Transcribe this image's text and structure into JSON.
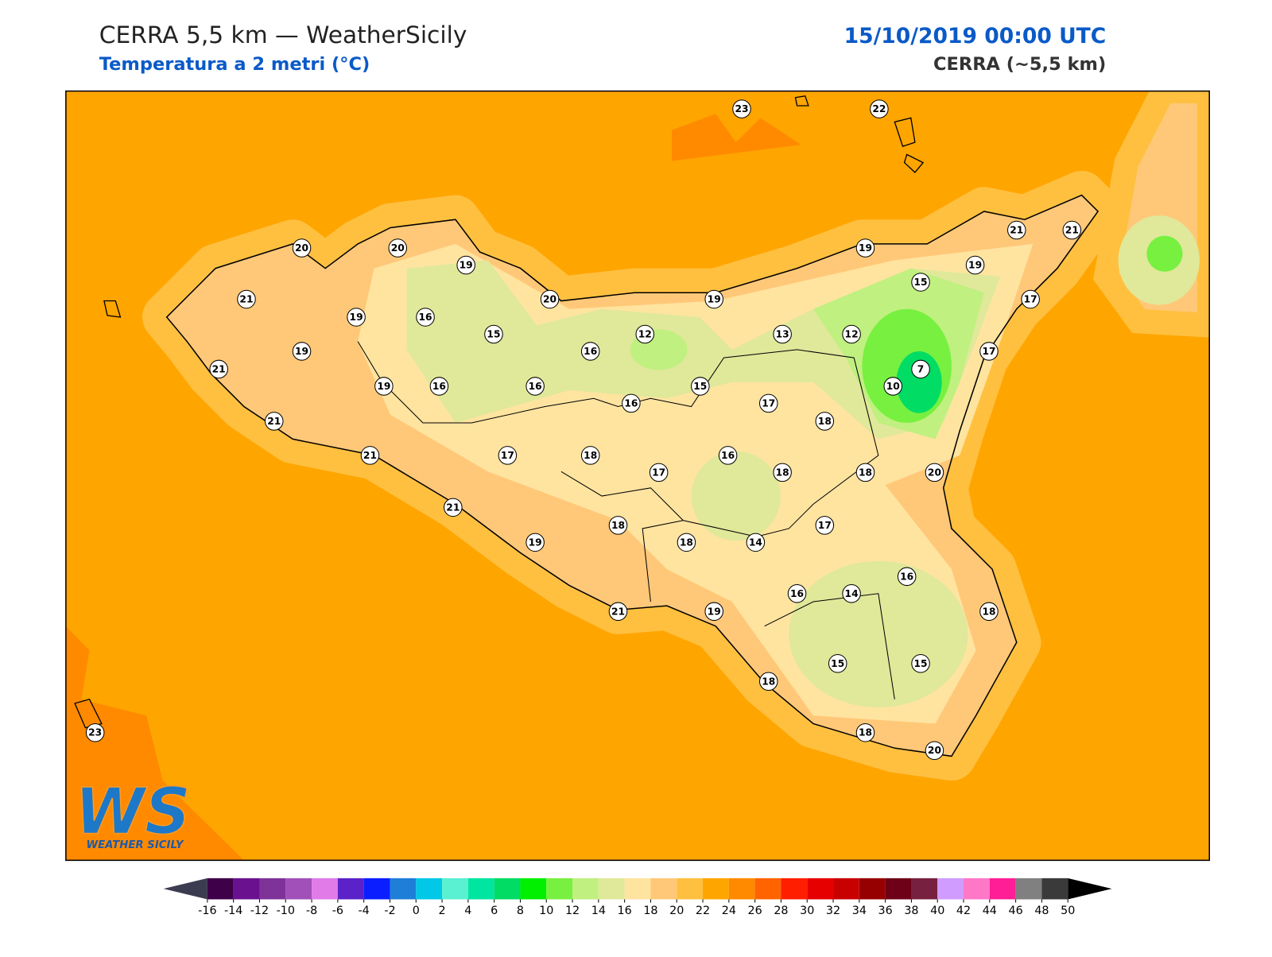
{
  "header": {
    "title": "CERRA 5,5 km — WeatherSicily",
    "subtitle": "Temperatura a 2 metri (°C)",
    "date": "15/10/2019 00:00 UTC",
    "model": "CERRA (~5,5 km)"
  },
  "stations": [
    23,
    22,
    20,
    20,
    19,
    21,
    19,
    16,
    15,
    20,
    19,
    19,
    21,
    21,
    19,
    15,
    17,
    21,
    19,
    19,
    16,
    16,
    16,
    12,
    13,
    12,
    7,
    10,
    17,
    21,
    15,
    16,
    17,
    18,
    21,
    17,
    18,
    17,
    16,
    18,
    18,
    20,
    21,
    18,
    19,
    18,
    14,
    17,
    16,
    16,
    14,
    18,
    21,
    19,
    15,
    15,
    18,
    18,
    20,
    23
  ],
  "colorbar": {
    "ticks": [
      -16,
      -14,
      -12,
      -10,
      -8,
      -6,
      -4,
      -2,
      0,
      2,
      4,
      6,
      8,
      10,
      12,
      14,
      16,
      18,
      20,
      22,
      24,
      26,
      28,
      30,
      32,
      34,
      36,
      38,
      40,
      42,
      44,
      46,
      48,
      50
    ],
    "colors": [
      "#3d0049",
      "#6a1190",
      "#7e3399",
      "#a050b8",
      "#e07be8",
      "#5a22c8",
      "#0a1eff",
      "#1e7ed8",
      "#00c8e6",
      "#5af0d2",
      "#00e6a0",
      "#00dc64",
      "#00f000",
      "#78f040",
      "#c0f080",
      "#e0e89a",
      "#ffe4a0",
      "#ffc878",
      "#ffc040",
      "#ffa500",
      "#ff8a00",
      "#ff6400",
      "#ff1e00",
      "#e60000",
      "#c80000",
      "#960000",
      "#6e0018",
      "#782040",
      "#d09cff",
      "#ff78c8",
      "#ff1e96",
      "#808080",
      "#3a3a3a"
    ],
    "under_color": "#3c3c50",
    "over_color": "#000000"
  },
  "logo": {
    "text": "WS",
    "caption": "WEATHER SICILY"
  }
}
